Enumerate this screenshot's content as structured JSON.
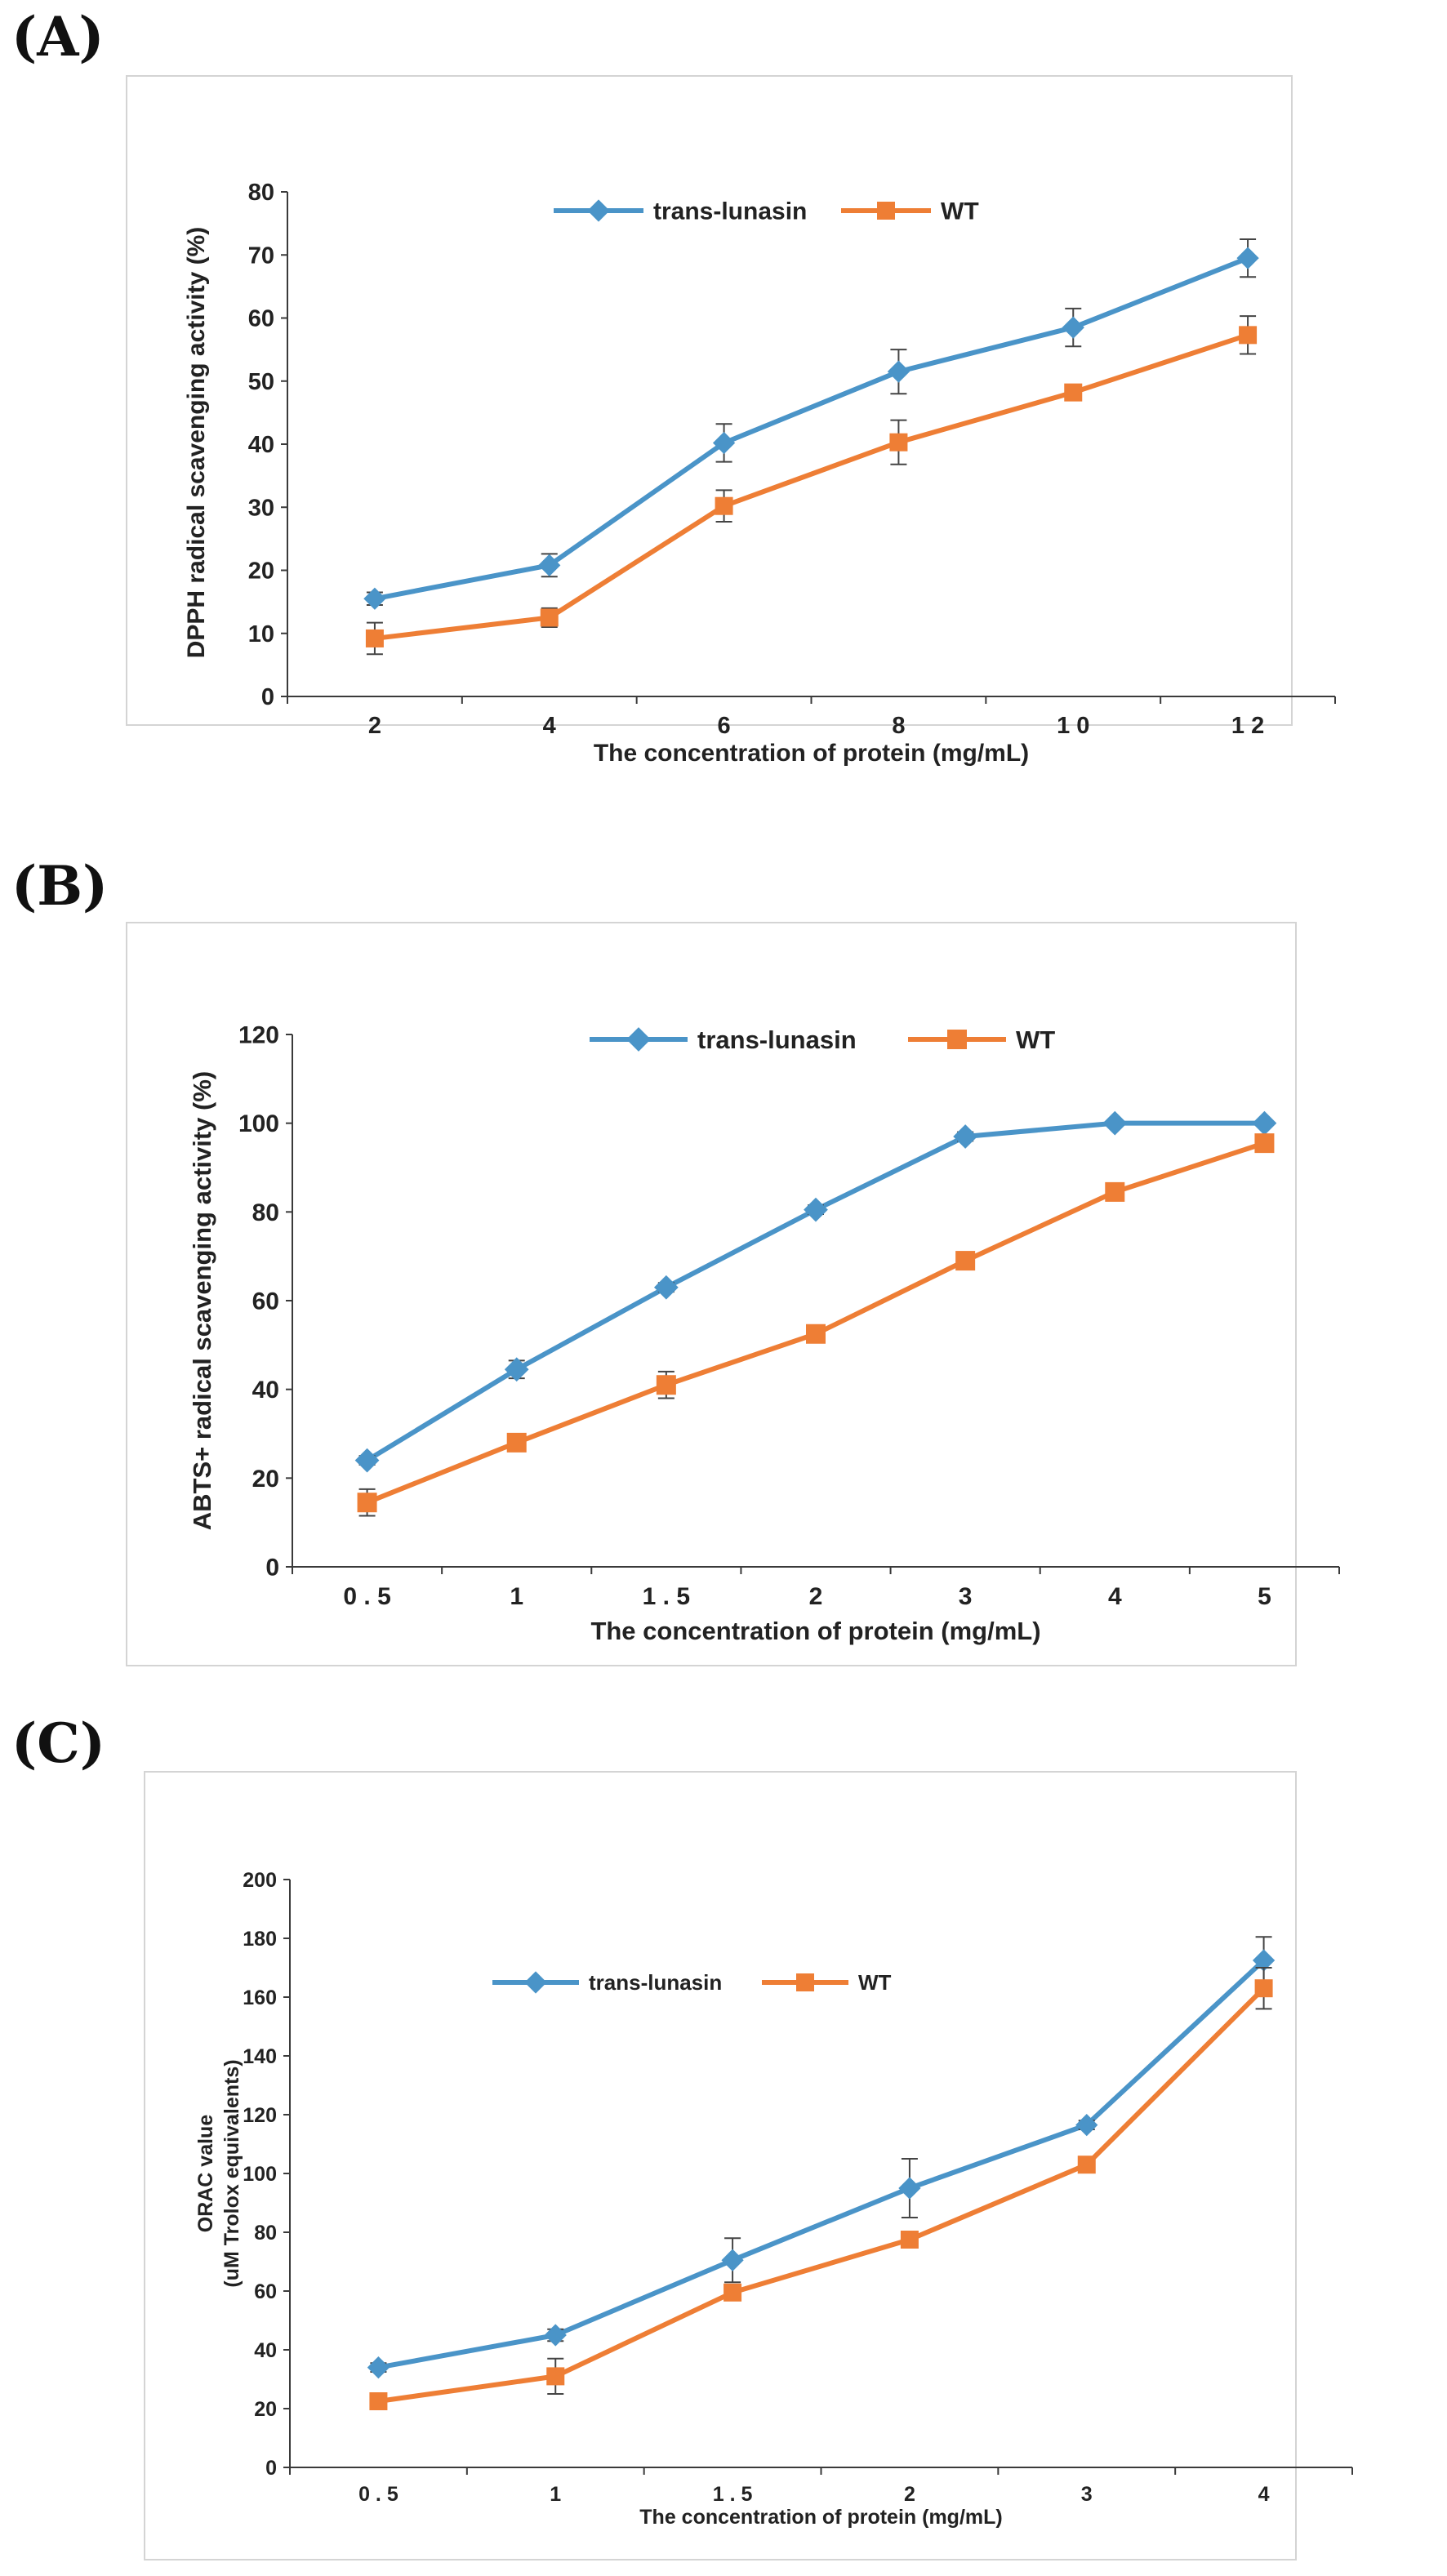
{
  "figure": {
    "type": "multi-panel line chart"
  },
  "colors": {
    "trans": "#4A94C8",
    "wt": "#EE7E35",
    "axis": "#3a3a3a",
    "frame": "#d4d4d4",
    "error": "#444444"
  },
  "chart_data": [
    {
      "panel": "(A)",
      "type": "line",
      "title": "",
      "categories": [
        "2",
        "4",
        "6",
        "8",
        "1 0",
        "1 2"
      ],
      "xlabel": "The concentration  of protein (mg/mL)",
      "ylabel": "DPPH radical scavenging activity (%)",
      "ylim": [
        0,
        80
      ],
      "yticks": [
        0,
        10,
        20,
        30,
        40,
        50,
        60,
        70,
        80
      ],
      "grid": false,
      "legend_position": "top-center",
      "series": [
        {
          "name": "trans-lunasin",
          "marker": "diamond",
          "color": "#4A94C8",
          "values": [
            15.5,
            20.8,
            40.2,
            51.5,
            58.5,
            69.5
          ],
          "errors": [
            1.0,
            1.8,
            3.0,
            3.5,
            3.0,
            3.0
          ]
        },
        {
          "name": "WT",
          "marker": "square",
          "color": "#EE7E35",
          "values": [
            9.2,
            12.5,
            30.2,
            40.3,
            48.2,
            57.3
          ],
          "errors": [
            2.5,
            1.5,
            2.5,
            3.5,
            1.0,
            3.0
          ]
        }
      ]
    },
    {
      "panel": "(B)",
      "type": "line",
      "title": "",
      "categories": [
        "0 . 5",
        "1",
        "1 . 5",
        "2",
        "3",
        "4",
        "5"
      ],
      "xlabel": "The concentration  of protein (mg/mL)",
      "ylabel": "ABTS+ radical scavenging activity (%)",
      "ylim": [
        0,
        120
      ],
      "yticks": [
        0,
        20,
        40,
        60,
        80,
        100,
        120
      ],
      "grid": false,
      "legend_position": "top-center",
      "series": [
        {
          "name": "trans-lunasin",
          "marker": "diamond",
          "color": "#4A94C8",
          "values": [
            24,
            44.5,
            63,
            80.5,
            97,
            100,
            100
          ],
          "errors": [
            1.0,
            2.0,
            1.0,
            1.0,
            1.0,
            0.5,
            0.5
          ]
        },
        {
          "name": "WT",
          "marker": "square",
          "color": "#EE7E35",
          "values": [
            14.5,
            28,
            41,
            52.5,
            69,
            84.5,
            95.5
          ],
          "errors": [
            3.0,
            1.5,
            3.0,
            1.0,
            1.0,
            1.0,
            1.0
          ]
        }
      ]
    },
    {
      "panel": "(C)",
      "type": "line",
      "title": "",
      "categories": [
        "0 . 5",
        "1",
        "1 . 5",
        "2",
        "3",
        "4"
      ],
      "xlabel": "The concentration  of protein (mg/mL)",
      "ylabel": "ORAC value",
      "ylabel2": "(uM Trolox equivalents)",
      "ylim": [
        0,
        200
      ],
      "yticks": [
        0,
        20,
        40,
        60,
        80,
        100,
        120,
        140,
        160,
        180,
        200
      ],
      "grid": false,
      "legend_position": "top-left",
      "series": [
        {
          "name": "trans-lunasin",
          "marker": "diamond",
          "color": "#4A94C8",
          "values": [
            34,
            45,
            70.5,
            95,
            116.5,
            172.5
          ],
          "errors": [
            1.5,
            2.0,
            7.5,
            10.0,
            1.5,
            8.0
          ]
        },
        {
          "name": "WT",
          "marker": "square",
          "color": "#EE7E35",
          "values": [
            22.5,
            31,
            59.5,
            77.5,
            103,
            163
          ],
          "errors": [
            1.5,
            6.0,
            2.0,
            1.5,
            1.5,
            7.0
          ]
        }
      ]
    }
  ]
}
